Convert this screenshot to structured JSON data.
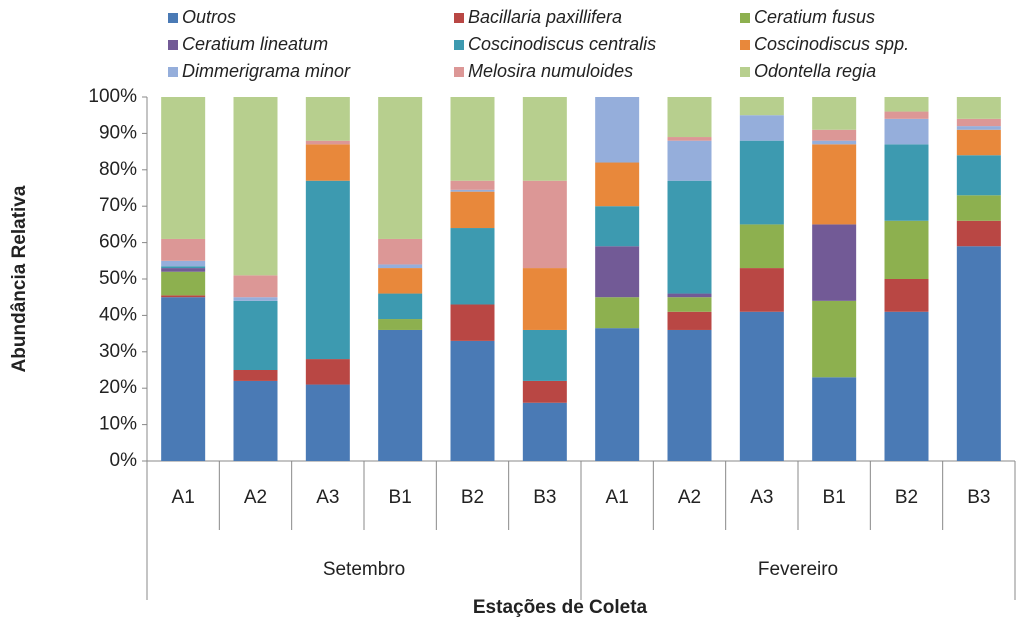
{
  "chart_data": {
    "type": "stacked_bar",
    "x_label": "Estações de Coleta",
    "y_label": "Abundância Relativa",
    "categories": [
      "A1",
      "A2",
      "A3",
      "B1",
      "B2",
      "B3",
      "A1",
      "A2",
      "A3",
      "B1",
      "B2",
      "B3"
    ],
    "groups": [
      "Setembro",
      "Fevereiro"
    ],
    "ylim": [
      0,
      100
    ],
    "yticks": [
      {
        "value": 0,
        "label": "0%"
      },
      {
        "value": 10,
        "label": "10%"
      },
      {
        "value": 20,
        "label": "20%"
      },
      {
        "value": 30,
        "label": "30%"
      },
      {
        "value": 40,
        "label": "40%"
      },
      {
        "value": 50,
        "label": "50%"
      },
      {
        "value": 60,
        "label": "60%"
      },
      {
        "value": 70,
        "label": "70%"
      },
      {
        "value": 80,
        "label": "80%"
      },
      {
        "value": 90,
        "label": "90%"
      },
      {
        "value": 100,
        "label": "100%"
      }
    ],
    "grid": false,
    "legend": "top",
    "series": [
      {
        "name": "Outros",
        "color": "#4a7ab5",
        "values": [
          45,
          22,
          21,
          36,
          33,
          16,
          36.5,
          36,
          41,
          23,
          41,
          59
        ]
      },
      {
        "name": "Bacillaria paxillifera",
        "color": "#b94744",
        "values": [
          0.5,
          3,
          7,
          0,
          10,
          6,
          0,
          5,
          12,
          0,
          9,
          7
        ]
      },
      {
        "name": "Ceratium fusus",
        "color": "#8db04f",
        "values": [
          6.5,
          0,
          0,
          3,
          0,
          0,
          8.5,
          4,
          12,
          21,
          16,
          7
        ]
      },
      {
        "name": "Ceratium lineatum",
        "color": "#725a96",
        "values": [
          1,
          0,
          0,
          0,
          0,
          0,
          14,
          1,
          0,
          21,
          0,
          0
        ]
      },
      {
        "name": "Coscinodiscus centralis",
        "color": "#3d9ab0",
        "values": [
          0.5,
          19,
          49,
          7,
          21,
          14,
          11,
          31,
          23,
          0,
          21,
          11
        ]
      },
      {
        "name": "Coscinodiscus spp.",
        "color": "#e8883b",
        "values": [
          0,
          0,
          10,
          7,
          10,
          17,
          12,
          0,
          0,
          22,
          0,
          7
        ]
      },
      {
        "name": "Dimmerigrama minor",
        "color": "#95aedb",
        "values": [
          1.5,
          1,
          0,
          1,
          0.5,
          0,
          18,
          11,
          7,
          1,
          7,
          1
        ]
      },
      {
        "name": "Melosira numuloides",
        "color": "#dc9796",
        "values": [
          6,
          6,
          1,
          7,
          2.5,
          24,
          0,
          1,
          0,
          3,
          2,
          2
        ]
      },
      {
        "name": "Odontella regia",
        "color": "#b7cf8e",
        "values": [
          39,
          49,
          12,
          39,
          23,
          23,
          0,
          11,
          5,
          9,
          4,
          6
        ]
      }
    ]
  }
}
